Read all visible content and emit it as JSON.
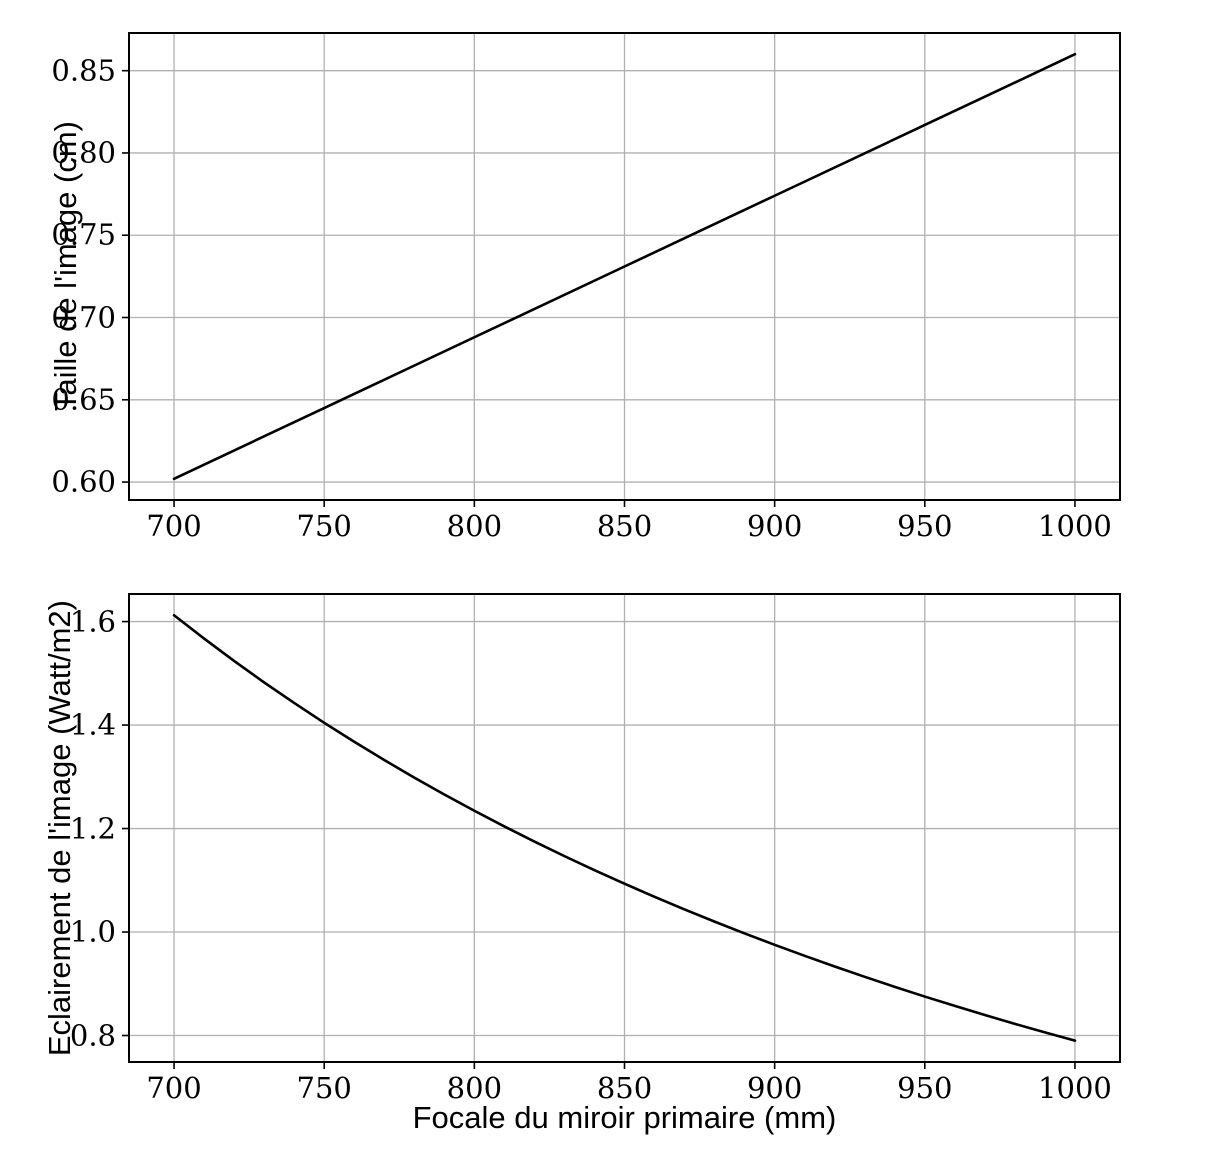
{
  "figure": {
    "background": "#ffffff",
    "grid_color": "#b0b0b0",
    "spine_color": "#000000",
    "tick_color": "#000000"
  },
  "chart_data": [
    {
      "type": "line",
      "title": "",
      "xlabel": "",
      "ylabel": "Taille de l'image (cm)",
      "line_color": "#000000",
      "grid": true,
      "legend": "none",
      "xlim": [
        685,
        1015
      ],
      "ylim": [
        0.5891,
        0.8729
      ],
      "xticks": [
        700,
        750,
        800,
        850,
        900,
        950,
        1000
      ],
      "xtick_labels": [
        "700",
        "750",
        "800",
        "850",
        "900",
        "950",
        "1000"
      ],
      "yticks": [
        0.6,
        0.65,
        0.7,
        0.75,
        0.8,
        0.85
      ],
      "ytick_labels": [
        "0.60",
        "0.65",
        "0.70",
        "0.75",
        "0.80",
        "0.85"
      ],
      "x": [
        700,
        750,
        800,
        850,
        900,
        950,
        1000
      ],
      "values": [
        0.602,
        0.645,
        0.688,
        0.731,
        0.774,
        0.817,
        0.86
      ]
    },
    {
      "type": "line",
      "title": "",
      "xlabel": "Focale du miroir primaire (mm)",
      "ylabel": "Eclairement de l'image (Watt/m2)",
      "line_color": "#000000",
      "grid": true,
      "legend": "none",
      "xlim": [
        685,
        1015
      ],
      "ylim": [
        0.7488,
        1.6533
      ],
      "xticks": [
        700,
        750,
        800,
        850,
        900,
        950,
        1000
      ],
      "xtick_labels": [
        "700",
        "750",
        "800",
        "850",
        "900",
        "950",
        "1000"
      ],
      "yticks": [
        0.8,
        1.0,
        1.2,
        1.4,
        1.6
      ],
      "ytick_labels": [
        "0.8",
        "1.0",
        "1.2",
        "1.4",
        "1.6"
      ],
      "x": [
        700,
        710,
        720,
        730,
        740,
        750,
        760,
        770,
        780,
        790,
        800,
        810,
        820,
        830,
        840,
        850,
        860,
        870,
        880,
        890,
        900,
        910,
        920,
        930,
        940,
        950,
        960,
        970,
        980,
        990,
        1000
      ],
      "values": [
        1.6122,
        1.5672,
        1.5239,
        1.4824,
        1.4427,
        1.4044,
        1.3677,
        1.3324,
        1.2985,
        1.2658,
        1.2344,
        1.2041,
        1.1749,
        1.1467,
        1.1196,
        1.0934,
        1.0681,
        1.0437,
        1.0201,
        0.9973,
        0.9753,
        0.954,
        0.9334,
        0.9134,
        0.894,
        0.8753,
        0.8572,
        0.8396,
        0.8225,
        0.806,
        0.79
      ]
    }
  ]
}
